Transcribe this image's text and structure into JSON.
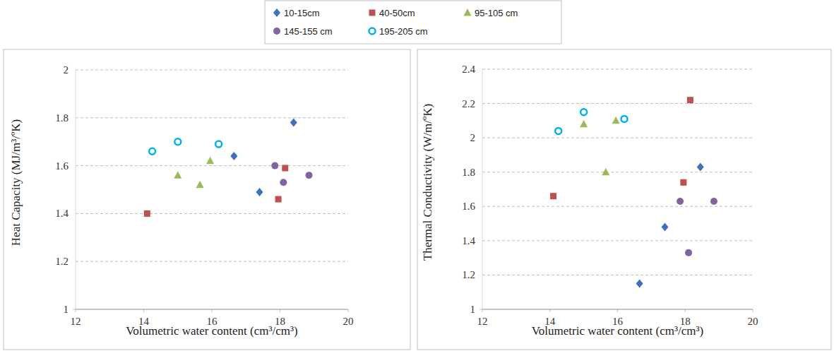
{
  "chart_data": [
    {
      "type": "scatter",
      "y_label": "Heat Capacity  (MJ/m³/ºK)",
      "x_label": "Volumetric  water content (cm³/cm³)",
      "xlim": [
        12,
        20
      ],
      "xticks": [
        12,
        14,
        16,
        18,
        20
      ],
      "ylim": [
        1,
        2
      ],
      "yticks": [
        1,
        1.2,
        1.4,
        1.6,
        1.8,
        2
      ],
      "grid": true,
      "legend": "top",
      "series": [
        {
          "name": "10-15cm",
          "color": "#3f6fbf",
          "marker": "diamond",
          "x": [
            16.65,
            17.4,
            18.4
          ],
          "values": [
            1.64,
            1.49,
            1.78
          ]
        },
        {
          "name": "40-50cm",
          "color": "#c0504d",
          "marker": "square",
          "x": [
            14.1,
            17.95,
            18.15
          ],
          "values": [
            1.4,
            1.46,
            1.59
          ]
        },
        {
          "name": "95-105 cm",
          "color": "#9bbb59",
          "marker": "triangle",
          "x": [
            15.0,
            15.65,
            15.95
          ],
          "values": [
            1.56,
            1.52,
            1.62
          ]
        },
        {
          "name": "145-155 cm",
          "color": "#8064a2",
          "marker": "circle",
          "x": [
            17.85,
            18.1,
            18.85
          ],
          "values": [
            1.6,
            1.53,
            1.56
          ]
        },
        {
          "name": "195-205 cm",
          "color": "#00b0f0",
          "marker": "open-circle",
          "x": [
            14.25,
            15.0,
            16.2
          ],
          "values": [
            1.66,
            1.7,
            1.69
          ]
        }
      ]
    },
    {
      "type": "scatter",
      "y_label": "Thermal  Conductivity  (W/m/ºK)",
      "x_label": "Volumetric  water content (cm³/cm³)",
      "xlim": [
        12,
        20
      ],
      "xticks": [
        12,
        14,
        16,
        18,
        20
      ],
      "ylim": [
        1,
        2.4
      ],
      "yticks": [
        1,
        1.2,
        1.4,
        1.6,
        1.8,
        2,
        2.2,
        2.4
      ],
      "grid": true,
      "series": [
        {
          "color": "#3f6fbf",
          "marker": "diamond",
          "x": [
            16.65,
            17.4,
            18.45
          ],
          "values": [
            1.15,
            1.48,
            1.83
          ]
        },
        {
          "color": "#c0504d",
          "marker": "square",
          "x": [
            14.1,
            17.95,
            18.15
          ],
          "values": [
            1.66,
            1.74,
            2.22
          ]
        },
        {
          "color": "#9bbb59",
          "marker": "triangle",
          "x": [
            15.0,
            15.65,
            15.95
          ],
          "values": [
            2.08,
            1.8,
            2.1
          ]
        },
        {
          "color": "#8064a2",
          "marker": "circle",
          "x": [
            17.85,
            18.1,
            18.85
          ],
          "values": [
            1.63,
            1.33,
            1.63
          ]
        },
        {
          "color": "#00b0f0",
          "marker": "open-circle",
          "x": [
            14.25,
            15.0,
            16.2
          ],
          "values": [
            2.04,
            2.15,
            2.11
          ]
        }
      ]
    }
  ]
}
